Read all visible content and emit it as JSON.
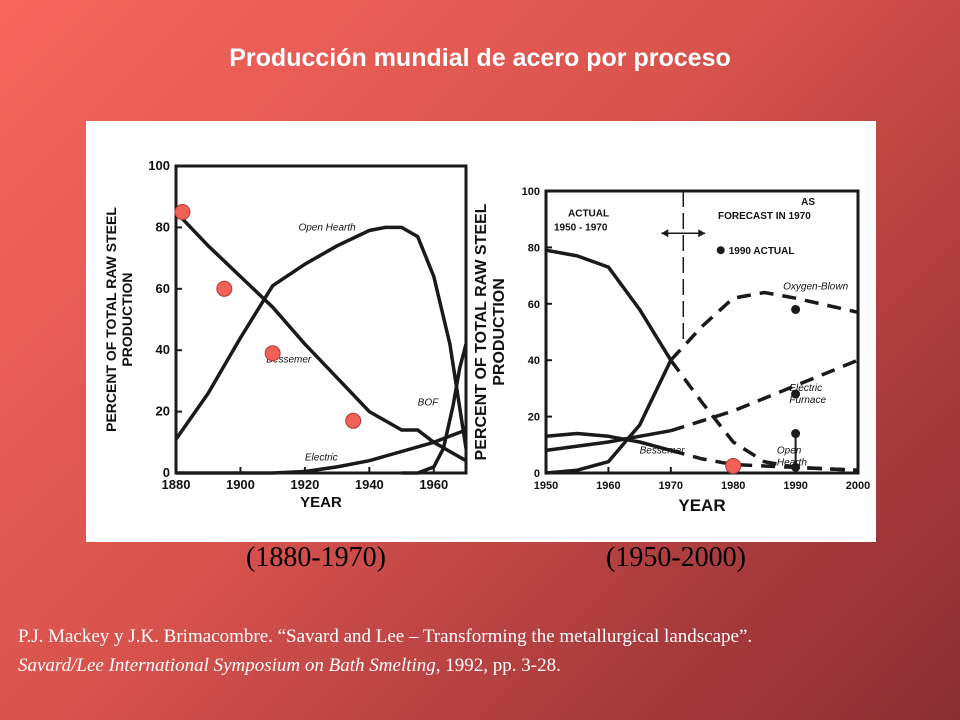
{
  "title": "Producción mundial de acero por proceso",
  "captions": {
    "left": "(1880-1970)",
    "right": "(1950-2000)"
  },
  "reference": {
    "line1": "P.J. Mackey y J.K. Brimacombre. “Savard and Lee – Transforming the metallurgical landscape”.",
    "line2_italic": "Savard/Lee International Symposium on Bath Smelting",
    "line2_rest": ", 1992, pp. 3-28."
  },
  "colors": {
    "marker": "#f06258",
    "line": "#1a1a1a",
    "panel": "#ffffff"
  },
  "chart_data": [
    {
      "type": "line",
      "xlabel": "YEAR",
      "ylabel": "PERCENT OF TOTAL RAW STEEL PRODUCTION",
      "xlim": [
        1880,
        1970
      ],
      "ylim": [
        0,
        100
      ],
      "xticks": [
        1880,
        1900,
        1920,
        1940,
        1960
      ],
      "yticks": [
        0,
        20,
        40,
        60,
        80,
        100
      ],
      "series": [
        {
          "name": "Bessemer",
          "label_at": [
            1908,
            36
          ],
          "x": [
            1880,
            1890,
            1900,
            1910,
            1920,
            1930,
            1940,
            1950,
            1955,
            1960,
            1965,
            1970
          ],
          "y": [
            85,
            74,
            64,
            54,
            42,
            31,
            20,
            14,
            14,
            10,
            7,
            4
          ]
        },
        {
          "name": "Open Hearth",
          "label_at": [
            1918,
            79
          ],
          "x": [
            1880,
            1890,
            1900,
            1910,
            1920,
            1930,
            1940,
            1945,
            1950,
            1955,
            1960,
            1965,
            1970
          ],
          "y": [
            11,
            26,
            44,
            61,
            68,
            74,
            79,
            80,
            80,
            77,
            64,
            42,
            8
          ]
        },
        {
          "name": "Electric",
          "label_at": [
            1920,
            4
          ],
          "x": [
            1880,
            1900,
            1910,
            1920,
            1930,
            1940,
            1950,
            1960,
            1970
          ],
          "y": [
            0,
            0,
            0,
            0.5,
            2,
            4,
            7,
            10,
            14
          ]
        },
        {
          "name": "BOF",
          "label_at": [
            1955,
            22
          ],
          "x": [
            1950,
            1955,
            1960,
            1963,
            1966,
            1968,
            1970
          ],
          "y": [
            0,
            0,
            2,
            8,
            22,
            34,
            42
          ]
        }
      ],
      "markers": {
        "x": [
          1882,
          1895,
          1910,
          1935
        ],
        "y": [
          85,
          60,
          39,
          17
        ]
      }
    },
    {
      "type": "line",
      "xlabel": "YEAR",
      "ylabel": "PERCENT OF TOTAL RAW STEEL PRODUCTION",
      "xlim": [
        1950,
        2000
      ],
      "ylim": [
        0,
        100
      ],
      "xticks": [
        1950,
        1960,
        1970,
        1980,
        1990,
        2000
      ],
      "yticks": [
        0,
        20,
        40,
        60,
        80,
        100
      ],
      "divider_year": 1972,
      "annotations": {
        "actual": [
          "ACTUAL",
          "1950 - 1970"
        ],
        "forecast": [
          "AS",
          "FORECAST IN 1970"
        ],
        "legend_dot": "1990 ACTUAL"
      },
      "series": [
        {
          "name": "Open Hearth",
          "label_at": [
            1987,
            7
          ],
          "x": [
            1950,
            1955,
            1960,
            1965,
            1970
          ],
          "y": [
            79,
            77,
            73,
            58,
            40
          ],
          "forecast": {
            "x": [
              1970,
              1975,
              1980,
              1985,
              1990,
              2000
            ],
            "y": [
              40,
              25,
              11,
              4,
              2,
              1
            ]
          }
        },
        {
          "name": "Oxygen-Blown",
          "label_at": [
            1988,
            65
          ],
          "x": [
            1950,
            1955,
            1960,
            1965,
            1970
          ],
          "y": [
            0,
            1,
            4,
            17,
            40
          ],
          "forecast": {
            "x": [
              1970,
              1975,
              1980,
              1985,
              1990,
              2000
            ],
            "y": [
              40,
              52,
              62,
              64,
              62,
              57
            ]
          }
        },
        {
          "name": "Electric Furnace",
          "label_at": [
            1989,
            29
          ],
          "x": [
            1950,
            1960,
            1965,
            1970
          ],
          "y": [
            8,
            11,
            13,
            15
          ],
          "forecast": {
            "x": [
              1970,
              1980,
              1990,
              2000
            ],
            "y": [
              15,
              22,
              31,
              40
            ]
          }
        },
        {
          "name": "Bessemer",
          "label_at": [
            1965,
            7
          ],
          "x": [
            1950,
            1955,
            1960,
            1965,
            1970
          ],
          "y": [
            13,
            14,
            13,
            11,
            8
          ],
          "forecast": {
            "x": [
              1970,
              1975,
              1980,
              1990,
              2000
            ],
            "y": [
              8,
              5,
              3,
              2,
              1
            ]
          }
        }
      ],
      "actual_1990": {
        "x": [
          1990,
          1990,
          1990,
          1990
        ],
        "y": [
          58,
          28,
          14,
          2
        ]
      },
      "markers": {
        "x": [
          1980
        ],
        "y": [
          2.5
        ]
      }
    }
  ]
}
